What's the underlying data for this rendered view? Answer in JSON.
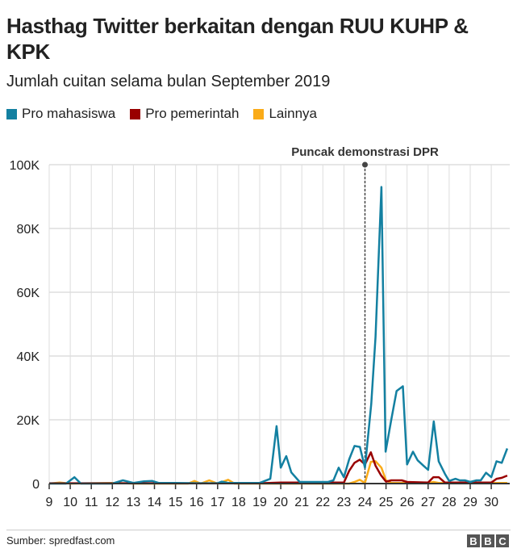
{
  "title": "Hasthag Twitter berkaitan dengan RUU KUHP & KPK",
  "subtitle": "Jumlah cuitan selama bulan September 2019",
  "source": "Sumber: spredfast.com",
  "logo": "BBC",
  "chart_data": {
    "type": "line",
    "title": "Hasthag Twitter berkaitan dengan RUU KUHP & KPK",
    "subtitle": "Jumlah cuitan selama bulan September 2019",
    "xlim": [
      9,
      30.8
    ],
    "ylim": [
      0,
      100000
    ],
    "x_ticks": [
      9,
      10,
      11,
      12,
      13,
      14,
      15,
      16,
      17,
      18,
      19,
      20,
      21,
      22,
      23,
      24,
      25,
      26,
      27,
      28,
      29,
      30
    ],
    "y_ticks": [
      0,
      20000,
      40000,
      60000,
      80000,
      100000
    ],
    "y_tick_labels": [
      "0",
      "20K",
      "40K",
      "60K",
      "80K",
      "100K"
    ],
    "grid": true,
    "legend_position": "top-left",
    "annotation": {
      "label": "Puncak demonstrasi DPR",
      "x": 24.0
    },
    "series": [
      {
        "name": "Pro mahasiswa",
        "color": "#1380A1",
        "points": [
          [
            9,
            0
          ],
          [
            9.8,
            0
          ],
          [
            10.2,
            2000
          ],
          [
            10.5,
            0
          ],
          [
            12,
            0
          ],
          [
            12.5,
            1000
          ],
          [
            13,
            200
          ],
          [
            13.5,
            700
          ],
          [
            13.9,
            800
          ],
          [
            14.2,
            200
          ],
          [
            15,
            200
          ],
          [
            16,
            100
          ],
          [
            17,
            100
          ],
          [
            17.2,
            600
          ],
          [
            17.5,
            200
          ],
          [
            19,
            200
          ],
          [
            19.5,
            1500
          ],
          [
            19.8,
            18000
          ],
          [
            20.0,
            5000
          ],
          [
            20.26,
            8600
          ],
          [
            20.5,
            3500
          ],
          [
            20.9,
            500
          ],
          [
            22.25,
            500
          ],
          [
            22.5,
            1000
          ],
          [
            22.75,
            5000
          ],
          [
            23.0,
            2000
          ],
          [
            23.25,
            7600
          ],
          [
            23.5,
            11800
          ],
          [
            23.76,
            11500
          ],
          [
            24.0,
            5000
          ],
          [
            24.3,
            25000
          ],
          [
            24.5,
            46000
          ],
          [
            24.78,
            93000
          ],
          [
            24.98,
            10000
          ],
          [
            25.25,
            20000
          ],
          [
            25.5,
            29000
          ],
          [
            25.8,
            30500
          ],
          [
            26.0,
            6000
          ],
          [
            26.28,
            10000
          ],
          [
            26.5,
            7300
          ],
          [
            26.78,
            5600
          ],
          [
            27.0,
            4300
          ],
          [
            27.27,
            19500
          ],
          [
            27.5,
            7000
          ],
          [
            27.8,
            3000
          ],
          [
            28.0,
            800
          ],
          [
            28.3,
            1500
          ],
          [
            28.5,
            1000
          ],
          [
            28.75,
            1000
          ],
          [
            29.0,
            500
          ],
          [
            29.3,
            1000
          ],
          [
            29.5,
            1000
          ],
          [
            29.75,
            3400
          ],
          [
            30.0,
            2000
          ],
          [
            30.25,
            7000
          ],
          [
            30.5,
            6500
          ],
          [
            30.76,
            11000
          ]
        ]
      },
      {
        "name": "Pro pemerintah",
        "color": "#990000",
        "points": [
          [
            9,
            100
          ],
          [
            19,
            100
          ],
          [
            20,
            300
          ],
          [
            23.0,
            300
          ],
          [
            23.25,
            4000
          ],
          [
            23.5,
            6500
          ],
          [
            23.75,
            7500
          ],
          [
            24.0,
            6000
          ],
          [
            24.28,
            9800
          ],
          [
            24.5,
            5600
          ],
          [
            24.75,
            2700
          ],
          [
            25.0,
            600
          ],
          [
            25.25,
            1000
          ],
          [
            25.75,
            1000
          ],
          [
            26.0,
            500
          ],
          [
            27.0,
            300
          ],
          [
            27.25,
            2000
          ],
          [
            27.5,
            2000
          ],
          [
            27.8,
            300
          ],
          [
            30.0,
            300
          ],
          [
            30.25,
            1500
          ],
          [
            30.5,
            1800
          ],
          [
            30.76,
            2500
          ]
        ]
      },
      {
        "name": "Lainnya",
        "color": "#FAAB18",
        "points": [
          [
            9,
            0
          ],
          [
            9.5,
            300
          ],
          [
            10,
            0
          ],
          [
            12,
            200
          ],
          [
            13,
            0
          ],
          [
            15.6,
            0
          ],
          [
            15.9,
            800
          ],
          [
            16.2,
            0
          ],
          [
            16.6,
            1000
          ],
          [
            17,
            0
          ],
          [
            17.5,
            1200
          ],
          [
            17.8,
            0
          ],
          [
            23.25,
            0
          ],
          [
            23.5,
            500
          ],
          [
            23.75,
            1200
          ],
          [
            24.0,
            200
          ],
          [
            24.28,
            6800
          ],
          [
            24.5,
            7000
          ],
          [
            24.78,
            5000
          ],
          [
            25.0,
            1000
          ],
          [
            25.25,
            200
          ],
          [
            27.0,
            200
          ],
          [
            27.25,
            500
          ],
          [
            27.5,
            200
          ],
          [
            30.76,
            200
          ]
        ]
      }
    ]
  }
}
